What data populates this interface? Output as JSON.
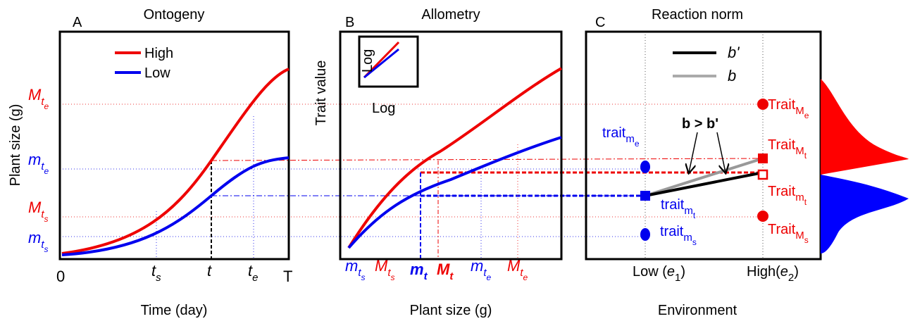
{
  "panels": [
    {
      "letter": "A",
      "title": "Ontogeny",
      "y_label": "Plant size (g)",
      "x_label": "Time (day)",
      "legend": [
        "High",
        "Low"
      ],
      "y_ticks": [
        {
          "base": "M",
          "sub": "t",
          "subsub": "e"
        },
        {
          "base": "m",
          "sub": "t",
          "subsub": "e"
        },
        {
          "base": "M",
          "sub": "t",
          "subsub": "s"
        },
        {
          "base": "m",
          "sub": "t",
          "subsub": "s"
        }
      ],
      "x_ticks": [
        "0",
        {
          "base": "t",
          "sub": "s"
        },
        "t",
        {
          "base": "t",
          "sub": "e"
        },
        "T"
      ]
    },
    {
      "letter": "B",
      "title": "Allometry",
      "y_label": "Trait value",
      "x_label": "Plant size (g)",
      "inset_labels": [
        "Log",
        "Log"
      ],
      "x_ticks": [
        {
          "base": "m",
          "sub": "t",
          "subsub": "s"
        },
        {
          "base": "M",
          "sub": "t",
          "subsub": "s"
        },
        {
          "base": "m",
          "sub": "t"
        },
        {
          "base": "M",
          "sub": "t"
        },
        {
          "base": "m",
          "sub": "t",
          "subsub": "e"
        },
        {
          "base": "M",
          "sub": "t",
          "subsub": "e"
        }
      ]
    },
    {
      "letter": "C",
      "title": "Reaction norm",
      "x_label": "Environment",
      "legend": [
        "b'",
        "b"
      ],
      "annotation": "b > b'",
      "point_labels": [
        {
          "base": "trait",
          "sub": "m",
          "subsub": "e"
        },
        {
          "base": "trait",
          "sub": "m",
          "subsub": "t"
        },
        {
          "base": "trait",
          "sub": "m",
          "subsub": "s"
        },
        {
          "base": "Trait",
          "sub": "M",
          "subsub": "e"
        },
        {
          "base": "Trait",
          "sub": "M",
          "subsub": "t"
        },
        {
          "base": "Trait",
          "sub": "m",
          "subsub": "t"
        },
        {
          "base": "Trait",
          "sub": "M",
          "subsub": "s"
        }
      ],
      "x_ticks": [
        {
          "base": "Low (",
          "var": "e",
          "sub": "1",
          "close": ")"
        },
        {
          "base": "High(",
          "var": "e",
          "sub": "2",
          "close": ")"
        }
      ]
    }
  ]
}
